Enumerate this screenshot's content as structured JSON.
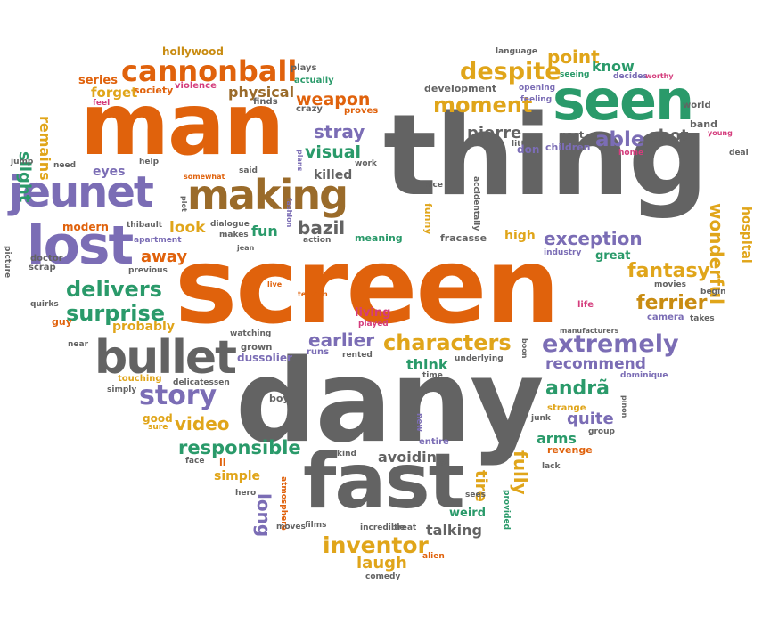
{
  "palette": {
    "orange": "#e0620c",
    "gray": "#636363",
    "purple": "#7b6db5",
    "green": "#2a9a6a",
    "gold": "#c98c12",
    "yellow": "#e0a51a",
    "brown": "#9a6b2a",
    "pink": "#d43c7c",
    "olive": "#8c8a3a",
    "teal": "#3b8f8a",
    "dkgray": "#555555"
  },
  "words": [
    {
      "text": "screen",
      "color": "orange"
    },
    {
      "text": "dany",
      "color": "gray"
    },
    {
      "text": "thing",
      "color": "gray"
    },
    {
      "text": "man",
      "color": "orange"
    },
    {
      "text": "fast",
      "color": "gray"
    },
    {
      "text": "bullet",
      "color": "gray"
    },
    {
      "text": "lost",
      "color": "purple"
    },
    {
      "text": "jeunet",
      "color": "purple"
    },
    {
      "text": "making",
      "color": "brown"
    },
    {
      "text": "seen",
      "color": "green"
    },
    {
      "text": "cannonball",
      "color": "orange"
    },
    {
      "text": "extremely",
      "color": "purple"
    },
    {
      "text": "characters",
      "color": "yellow"
    },
    {
      "text": "story",
      "color": "purple"
    },
    {
      "text": "despite",
      "color": "yellow"
    },
    {
      "text": "moment",
      "color": "yellow"
    },
    {
      "text": "delivers",
      "color": "green"
    },
    {
      "text": "surprise",
      "color": "green"
    },
    {
      "text": "fantasy",
      "color": "yellow"
    },
    {
      "text": "inventor",
      "color": "yellow"
    },
    {
      "text": "wonderful",
      "color": "yellow"
    },
    {
      "text": "responsible",
      "color": "green"
    },
    {
      "text": "exception",
      "color": "purple"
    },
    {
      "text": "ferrier",
      "color": "gold"
    },
    {
      "text": "able",
      "color": "purple"
    },
    {
      "text": "weapon",
      "color": "orange"
    },
    {
      "text": "earlier",
      "color": "purple"
    },
    {
      "text": "recommend",
      "color": "purple"
    },
    {
      "text": "andrã",
      "color": "green"
    },
    {
      "text": "long",
      "color": "purple"
    },
    {
      "text": "fully",
      "color": "yellow"
    },
    {
      "text": "video",
      "color": "yellow"
    },
    {
      "text": "point",
      "color": "yellow"
    },
    {
      "text": "know",
      "color": "green"
    },
    {
      "text": "stray",
      "color": "purple"
    },
    {
      "text": "pierre",
      "color": "gray"
    },
    {
      "text": "visual",
      "color": "green"
    },
    {
      "text": "bazil",
      "color": "gray"
    },
    {
      "text": "avoiding",
      "color": "gray"
    },
    {
      "text": "laugh",
      "color": "yellow"
    },
    {
      "text": "arms",
      "color": "green"
    },
    {
      "text": "quite",
      "color": "purple"
    },
    {
      "text": "shot",
      "color": "gray"
    },
    {
      "text": "away",
      "color": "orange"
    },
    {
      "text": "look",
      "color": "yellow"
    },
    {
      "text": "fun",
      "color": "green"
    },
    {
      "text": "physical",
      "color": "brown"
    },
    {
      "text": "slight",
      "color": "green"
    },
    {
      "text": "remains",
      "color": "yellow"
    },
    {
      "text": "forget",
      "color": "yellow"
    },
    {
      "text": "series",
      "color": "orange"
    },
    {
      "text": "hospital",
      "color": "yellow"
    },
    {
      "text": "think",
      "color": "green"
    },
    {
      "text": "talking",
      "color": "gray"
    },
    {
      "text": "weird",
      "color": "green"
    },
    {
      "text": "probably",
      "color": "yellow"
    },
    {
      "text": "simple",
      "color": "yellow"
    },
    {
      "text": "tire",
      "color": "yellow"
    },
    {
      "text": "high",
      "color": "yellow"
    },
    {
      "text": "killed",
      "color": "gray"
    },
    {
      "text": "great",
      "color": "green"
    },
    {
      "text": "eyes",
      "color": "purple"
    },
    {
      "text": "hollywood",
      "color": "gold"
    },
    {
      "text": "society",
      "color": "orange"
    },
    {
      "text": "violence",
      "color": "pink"
    },
    {
      "text": "plays",
      "color": "gray"
    },
    {
      "text": "actually",
      "color": "green"
    },
    {
      "text": "finds",
      "color": "gray"
    },
    {
      "text": "crazy",
      "color": "gray"
    },
    {
      "text": "proves",
      "color": "orange"
    },
    {
      "text": "feel",
      "color": "pink"
    },
    {
      "text": "need",
      "color": "gray"
    },
    {
      "text": "jump",
      "color": "gray"
    },
    {
      "text": "help",
      "color": "gray"
    },
    {
      "text": "somewhat",
      "color": "orange"
    },
    {
      "text": "said",
      "color": "gray"
    },
    {
      "text": "fashion",
      "color": "purple"
    },
    {
      "text": "plans",
      "color": "purple"
    },
    {
      "text": "work",
      "color": "gray"
    },
    {
      "text": "development",
      "color": "gray"
    },
    {
      "text": "language",
      "color": "gray"
    },
    {
      "text": "seeing",
      "color": "green"
    },
    {
      "text": "decides",
      "color": "purple"
    },
    {
      "text": "worthy",
      "color": "pink"
    },
    {
      "text": "opening",
      "color": "purple"
    },
    {
      "text": "feeling",
      "color": "purple"
    },
    {
      "text": "world",
      "color": "gray"
    },
    {
      "text": "band",
      "color": "gray"
    },
    {
      "text": "young",
      "color": "pink"
    },
    {
      "text": "deal",
      "color": "gray"
    },
    {
      "text": "past",
      "color": "gray"
    },
    {
      "text": "little",
      "color": "gray"
    },
    {
      "text": "don",
      "color": "purple"
    },
    {
      "text": "children",
      "color": "purple"
    },
    {
      "text": "home",
      "color": "pink"
    },
    {
      "text": "nice",
      "color": "gray"
    },
    {
      "text": "accidentally",
      "color": "gray"
    },
    {
      "text": "funny",
      "color": "yellow"
    },
    {
      "text": "fracasse",
      "color": "gray"
    },
    {
      "text": "meaning",
      "color": "green"
    },
    {
      "text": "action",
      "color": "gray"
    },
    {
      "text": "jean",
      "color": "gray"
    },
    {
      "text": "makes",
      "color": "gray"
    },
    {
      "text": "dialogue",
      "color": "gray"
    },
    {
      "text": "plot",
      "color": "gray"
    },
    {
      "text": "apartment",
      "color": "purple"
    },
    {
      "text": "thibault",
      "color": "gray"
    },
    {
      "text": "modern",
      "color": "orange"
    },
    {
      "text": "picture",
      "color": "gray"
    },
    {
      "text": "previous",
      "color": "gray"
    },
    {
      "text": "doctor",
      "color": "gray"
    },
    {
      "text": "scrap",
      "color": "gray"
    },
    {
      "text": "quirks",
      "color": "gray"
    },
    {
      "text": "guy",
      "color": "orange"
    },
    {
      "text": "live",
      "color": "orange"
    },
    {
      "text": "tension",
      "color": "orange"
    },
    {
      "text": "living",
      "color": "pink"
    },
    {
      "text": "played",
      "color": "pink"
    },
    {
      "text": "industry",
      "color": "purple"
    },
    {
      "text": "movies",
      "color": "gray"
    },
    {
      "text": "begin",
      "color": "gray"
    },
    {
      "text": "life",
      "color": "pink"
    },
    {
      "text": "camera",
      "color": "purple"
    },
    {
      "text": "takes",
      "color": "gray"
    },
    {
      "text": "manufacturers",
      "color": "gray"
    },
    {
      "text": "boon",
      "color": "gray"
    },
    {
      "text": "near",
      "color": "gray"
    },
    {
      "text": "watching",
      "color": "gray"
    },
    {
      "text": "grown",
      "color": "gray"
    },
    {
      "text": "dussolier",
      "color": "purple"
    },
    {
      "text": "runs",
      "color": "purple"
    },
    {
      "text": "rented",
      "color": "gray"
    },
    {
      "text": "underlying",
      "color": "gray"
    },
    {
      "text": "time",
      "color": "gray"
    },
    {
      "text": "touching",
      "color": "yellow"
    },
    {
      "text": "simply",
      "color": "gray"
    },
    {
      "text": "delicatessen",
      "color": "gray"
    },
    {
      "text": "boy",
      "color": "gray"
    },
    {
      "text": "dominique",
      "color": "purple"
    },
    {
      "text": "pinon",
      "color": "gray"
    },
    {
      "text": "strange",
      "color": "yellow"
    },
    {
      "text": "junk",
      "color": "gray"
    },
    {
      "text": "group",
      "color": "gray"
    },
    {
      "text": "good",
      "color": "yellow"
    },
    {
      "text": "sure",
      "color": "yellow"
    },
    {
      "text": "new",
      "color": "purple"
    },
    {
      "text": "entire",
      "color": "purple"
    },
    {
      "text": "revenge",
      "color": "orange"
    },
    {
      "text": "face",
      "color": "gray"
    },
    {
      "text": "ll",
      "color": "orange"
    },
    {
      "text": "kind",
      "color": "gray"
    },
    {
      "text": "lack",
      "color": "gray"
    },
    {
      "text": "hero",
      "color": "gray"
    },
    {
      "text": "atmosphere",
      "color": "orange"
    },
    {
      "text": "sees",
      "color": "gray"
    },
    {
      "text": "provided",
      "color": "green"
    },
    {
      "text": "moves",
      "color": "gray"
    },
    {
      "text": "films",
      "color": "gray"
    },
    {
      "text": "incredible",
      "color": "gray"
    },
    {
      "text": "treat",
      "color": "gray"
    },
    {
      "text": "alien",
      "color": "orange"
    },
    {
      "text": "comedy",
      "color": "gray"
    }
  ]
}
